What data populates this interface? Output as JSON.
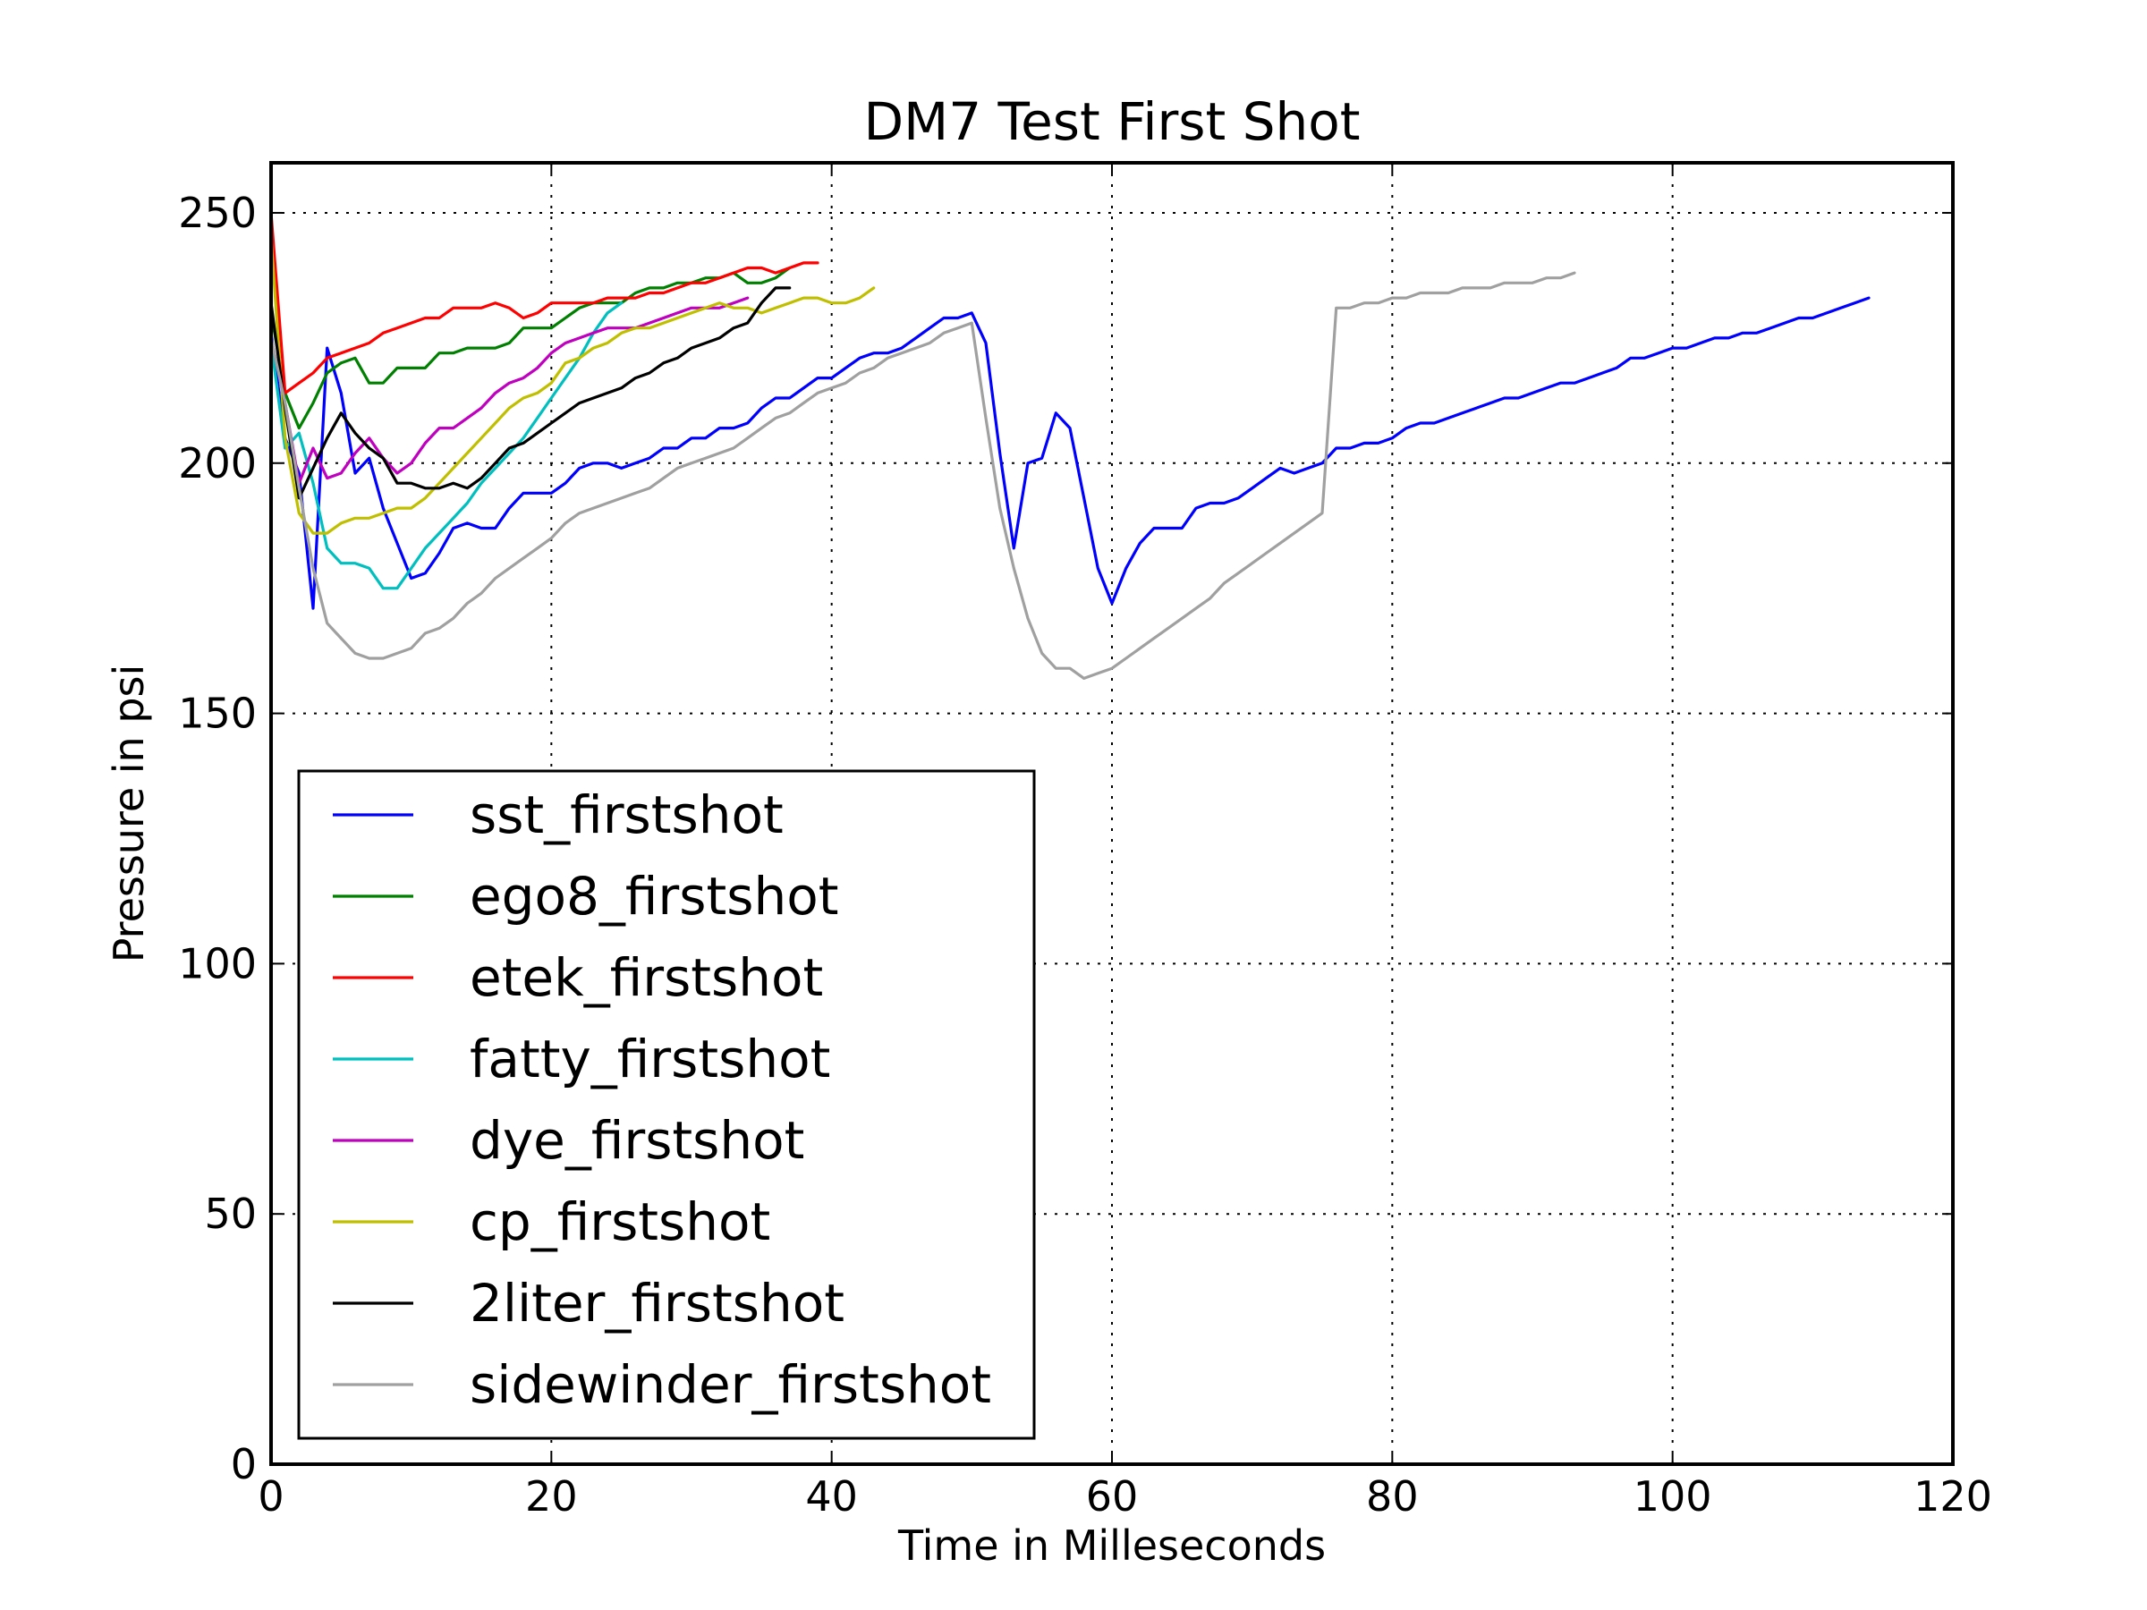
{
  "chart_data": {
    "type": "line",
    "title": "DM7 Test First Shot",
    "xlabel": "Time in Milleseconds",
    "ylabel": "Pressure in psi",
    "xlim": [
      0,
      120
    ],
    "ylim": [
      0,
      260
    ],
    "xticks": [
      0,
      20,
      40,
      60,
      80,
      100,
      120
    ],
    "yticks": [
      0,
      50,
      100,
      150,
      200,
      250
    ],
    "xtick_labels": [
      "0",
      "20",
      "40",
      "60",
      "80",
      "100",
      "120"
    ],
    "ytick_labels": [
      "0",
      "50",
      "100",
      "150",
      "200",
      "250"
    ],
    "grid": true,
    "legend_position": "lower-left",
    "series": [
      {
        "name": "sst_firstshot",
        "color": "#0000ff",
        "x": [
          0,
          1,
          2,
          3,
          4,
          5,
          6,
          7,
          8,
          9,
          10,
          11,
          12,
          13,
          14,
          15,
          16,
          17,
          18,
          19,
          20,
          21,
          22,
          23,
          24,
          25,
          26,
          27,
          28,
          29,
          30,
          31,
          32,
          33,
          34,
          35,
          36,
          37,
          38,
          39,
          40,
          41,
          42,
          43,
          44,
          45,
          46,
          47,
          48,
          49,
          50,
          51,
          52,
          53,
          54,
          55,
          56,
          57,
          58,
          59,
          60,
          61,
          62,
          63,
          64,
          65,
          66,
          67,
          68,
          69,
          70,
          71,
          72,
          73,
          74,
          75,
          76,
          77,
          78,
          79,
          80,
          81,
          82,
          83,
          84,
          85,
          86,
          87,
          88,
          89,
          90,
          91,
          92,
          93,
          94,
          95,
          96,
          97,
          98,
          99,
          100,
          101,
          102,
          103,
          104,
          105,
          106,
          107,
          108,
          109,
          110,
          111,
          112,
          113,
          114
        ],
        "y": [
          226,
          205,
          198,
          171,
          223,
          214,
          198,
          201,
          191,
          184,
          177,
          178,
          182,
          187,
          188,
          187,
          187,
          191,
          194,
          194,
          194,
          196,
          199,
          200,
          200,
          199,
          200,
          201,
          203,
          203,
          205,
          205,
          207,
          207,
          208,
          211,
          213,
          213,
          215,
          217,
          217,
          219,
          221,
          222,
          222,
          223,
          225,
          227,
          229,
          229,
          230,
          224,
          202,
          183,
          200,
          201,
          210,
          207,
          193,
          179,
          172,
          179,
          184,
          187,
          187,
          187,
          191,
          192,
          192,
          193,
          195,
          197,
          199,
          198,
          199,
          200,
          203,
          203,
          204,
          204,
          205,
          207,
          208,
          208,
          209,
          210,
          211,
          212,
          213,
          213,
          214,
          215,
          216,
          216,
          217,
          218,
          219,
          221,
          221,
          222,
          223,
          223,
          224,
          225,
          225,
          226,
          226,
          227,
          228,
          229,
          229,
          230,
          231,
          232,
          233
        ]
      },
      {
        "name": "ego8_firstshot",
        "color": "#008000",
        "x": [
          0,
          1,
          2,
          3,
          4,
          5,
          6,
          7,
          8,
          9,
          10,
          11,
          12,
          13,
          14,
          15,
          16,
          17,
          18,
          19,
          20,
          21,
          22,
          23,
          24,
          25,
          26,
          27,
          28,
          29,
          30,
          31,
          32,
          33,
          34,
          35,
          36,
          37
        ],
        "y": [
          230,
          214,
          207,
          212,
          218,
          220,
          221,
          216,
          216,
          219,
          219,
          219,
          222,
          222,
          223,
          223,
          223,
          224,
          227,
          227,
          227,
          229,
          231,
          232,
          232,
          232,
          234,
          235,
          235,
          236,
          236,
          237,
          237,
          238,
          236,
          236,
          237,
          239
        ]
      },
      {
        "name": "etek_firstshot",
        "color": "#ff0000",
        "x": [
          0,
          1,
          2,
          3,
          4,
          5,
          6,
          7,
          8,
          9,
          10,
          11,
          12,
          13,
          14,
          15,
          16,
          17,
          18,
          19,
          20,
          21,
          22,
          23,
          24,
          25,
          26,
          27,
          28,
          29,
          30,
          31,
          32,
          33,
          34,
          35,
          36,
          37,
          38,
          39
        ],
        "y": [
          250,
          214,
          216,
          218,
          221,
          222,
          223,
          224,
          226,
          227,
          228,
          229,
          229,
          231,
          231,
          231,
          232,
          231,
          229,
          230,
          232,
          232,
          232,
          232,
          233,
          233,
          233,
          234,
          234,
          235,
          236,
          236,
          237,
          238,
          239,
          239,
          238,
          239,
          240,
          240
        ]
      },
      {
        "name": "fatty_firstshot",
        "color": "#00bfbf",
        "x": [
          0,
          1,
          2,
          3,
          4,
          5,
          6,
          7,
          8,
          9,
          10,
          11,
          12,
          13,
          14,
          15,
          16,
          17,
          18,
          19,
          20,
          21,
          22,
          23,
          24,
          25
        ],
        "y": [
          224,
          203,
          206,
          196,
          183,
          180,
          180,
          179,
          175,
          175,
          179,
          183,
          186,
          189,
          192,
          196,
          199,
          202,
          205,
          209,
          213,
          217,
          221,
          226,
          230,
          232
        ]
      },
      {
        "name": "dye_firstshot",
        "color": "#bf00bf",
        "x": [
          0,
          1,
          2,
          3,
          4,
          5,
          6,
          7,
          8,
          9,
          10,
          11,
          12,
          13,
          14,
          15,
          16,
          17,
          18,
          19,
          20,
          21,
          22,
          23,
          24,
          25,
          26,
          27,
          28,
          29,
          30,
          31,
          32,
          33,
          34
        ],
        "y": [
          225,
          212,
          196,
          203,
          197,
          198,
          202,
          205,
          201,
          198,
          200,
          204,
          207,
          207,
          209,
          211,
          214,
          216,
          217,
          219,
          222,
          224,
          225,
          226,
          227,
          227,
          227,
          228,
          229,
          230,
          231,
          231,
          231,
          232,
          233
        ]
      },
      {
        "name": "cp_firstshot",
        "color": "#bfbf00",
        "x": [
          0,
          1,
          2,
          3,
          4,
          5,
          6,
          7,
          8,
          9,
          10,
          11,
          12,
          13,
          14,
          15,
          16,
          17,
          18,
          19,
          20,
          21,
          22,
          23,
          24,
          25,
          26,
          27,
          28,
          29,
          30,
          31,
          32,
          33,
          34,
          35,
          36,
          37,
          38,
          39,
          40,
          41,
          42,
          43
        ],
        "y": [
          245,
          205,
          190,
          186,
          186,
          188,
          189,
          189,
          190,
          191,
          191,
          193,
          196,
          199,
          202,
          205,
          208,
          211,
          213,
          214,
          216,
          220,
          221,
          223,
          224,
          226,
          227,
          227,
          228,
          229,
          230,
          231,
          232,
          231,
          231,
          230,
          231,
          232,
          233,
          233,
          232,
          232,
          233,
          235
        ]
      },
      {
        "name": "2liter_firstshot",
        "color": "#000000",
        "x": [
          0,
          1,
          2,
          3,
          4,
          5,
          6,
          7,
          8,
          9,
          10,
          11,
          12,
          13,
          14,
          15,
          16,
          17,
          18,
          19,
          20,
          21,
          22,
          23,
          24,
          25,
          26,
          27,
          28,
          29,
          30,
          31,
          32,
          33,
          34,
          35,
          36,
          37
        ],
        "y": [
          232,
          211,
          193,
          199,
          205,
          210,
          206,
          203,
          201,
          196,
          196,
          195,
          195,
          196,
          195,
          197,
          200,
          203,
          204,
          206,
          208,
          210,
          212,
          213,
          214,
          215,
          217,
          218,
          220,
          221,
          223,
          224,
          225,
          227,
          228,
          232,
          235,
          235
        ]
      },
      {
        "name": "sidewinder_firstshot",
        "color": "#a0a0a0",
        "x": [
          0,
          1,
          2,
          3,
          4,
          5,
          6,
          7,
          8,
          9,
          10,
          11,
          12,
          13,
          14,
          15,
          16,
          17,
          18,
          19,
          20,
          21,
          22,
          23,
          24,
          25,
          26,
          27,
          28,
          29,
          30,
          31,
          32,
          33,
          34,
          35,
          36,
          37,
          38,
          39,
          40,
          41,
          42,
          43,
          44,
          45,
          46,
          47,
          48,
          49,
          50,
          51,
          52,
          53,
          54,
          55,
          56,
          57,
          58,
          59,
          60,
          61,
          62,
          63,
          64,
          65,
          66,
          67,
          68,
          69,
          70,
          71,
          72,
          73,
          74,
          75,
          76,
          77,
          78,
          79,
          80,
          81,
          82,
          83,
          84,
          85,
          86,
          87,
          88,
          89,
          90,
          91,
          92,
          93
        ],
        "y": [
          225,
          212,
          195,
          179,
          168,
          165,
          162,
          161,
          161,
          162,
          163,
          166,
          167,
          169,
          172,
          174,
          177,
          179,
          181,
          183,
          185,
          188,
          190,
          191,
          192,
          193,
          194,
          195,
          197,
          199,
          200,
          201,
          202,
          203,
          205,
          207,
          209,
          210,
          212,
          214,
          215,
          216,
          218,
          219,
          221,
          222,
          223,
          224,
          226,
          227,
          228,
          209,
          191,
          179,
          169,
          162,
          159,
          159,
          157,
          158,
          159,
          161,
          163,
          165,
          167,
          169,
          171,
          173,
          176,
          178,
          180,
          182,
          184,
          186,
          188,
          190,
          231,
          231,
          232,
          232,
          233,
          233,
          234,
          234,
          234,
          235,
          235,
          235,
          236,
          236,
          236,
          237,
          237,
          238
        ]
      }
    ]
  }
}
